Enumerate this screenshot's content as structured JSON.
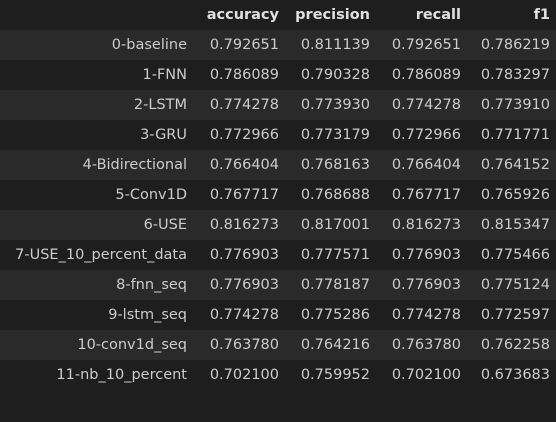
{
  "table": {
    "index_header": "",
    "columns": [
      "accuracy",
      "precision",
      "recall",
      "f1"
    ],
    "rows": [
      {
        "name": "0-baseline",
        "values": [
          "0.792651",
          "0.811139",
          "0.792651",
          "0.786219"
        ]
      },
      {
        "name": "1-FNN",
        "values": [
          "0.786089",
          "0.790328",
          "0.786089",
          "0.783297"
        ]
      },
      {
        "name": "2-LSTM",
        "values": [
          "0.774278",
          "0.773930",
          "0.774278",
          "0.773910"
        ]
      },
      {
        "name": "3-GRU",
        "values": [
          "0.772966",
          "0.773179",
          "0.772966",
          "0.771771"
        ]
      },
      {
        "name": "4-Bidirectional",
        "values": [
          "0.766404",
          "0.768163",
          "0.766404",
          "0.764152"
        ]
      },
      {
        "name": "5-Conv1D",
        "values": [
          "0.767717",
          "0.768688",
          "0.767717",
          "0.765926"
        ]
      },
      {
        "name": "6-USE",
        "values": [
          "0.816273",
          "0.817001",
          "0.816273",
          "0.815347"
        ]
      },
      {
        "name": "7-USE_10_percent_data",
        "values": [
          "0.776903",
          "0.777571",
          "0.776903",
          "0.775466"
        ]
      },
      {
        "name": "8-fnn_seq",
        "values": [
          "0.776903",
          "0.778187",
          "0.776903",
          "0.775124"
        ]
      },
      {
        "name": "9-lstm_seq",
        "values": [
          "0.774278",
          "0.775286",
          "0.774278",
          "0.772597"
        ]
      },
      {
        "name": "10-conv1d_seq",
        "values": [
          "0.763780",
          "0.764216",
          "0.763780",
          "0.762258"
        ]
      },
      {
        "name": "11-nb_10_percent",
        "values": [
          "0.702100",
          "0.759952",
          "0.702100",
          "0.673683"
        ]
      }
    ]
  },
  "colors": {
    "background": "#1e1e1e",
    "row_stripe": "#2a2a2a",
    "text": "#cccccc",
    "header_text": "#e0e0e0"
  }
}
